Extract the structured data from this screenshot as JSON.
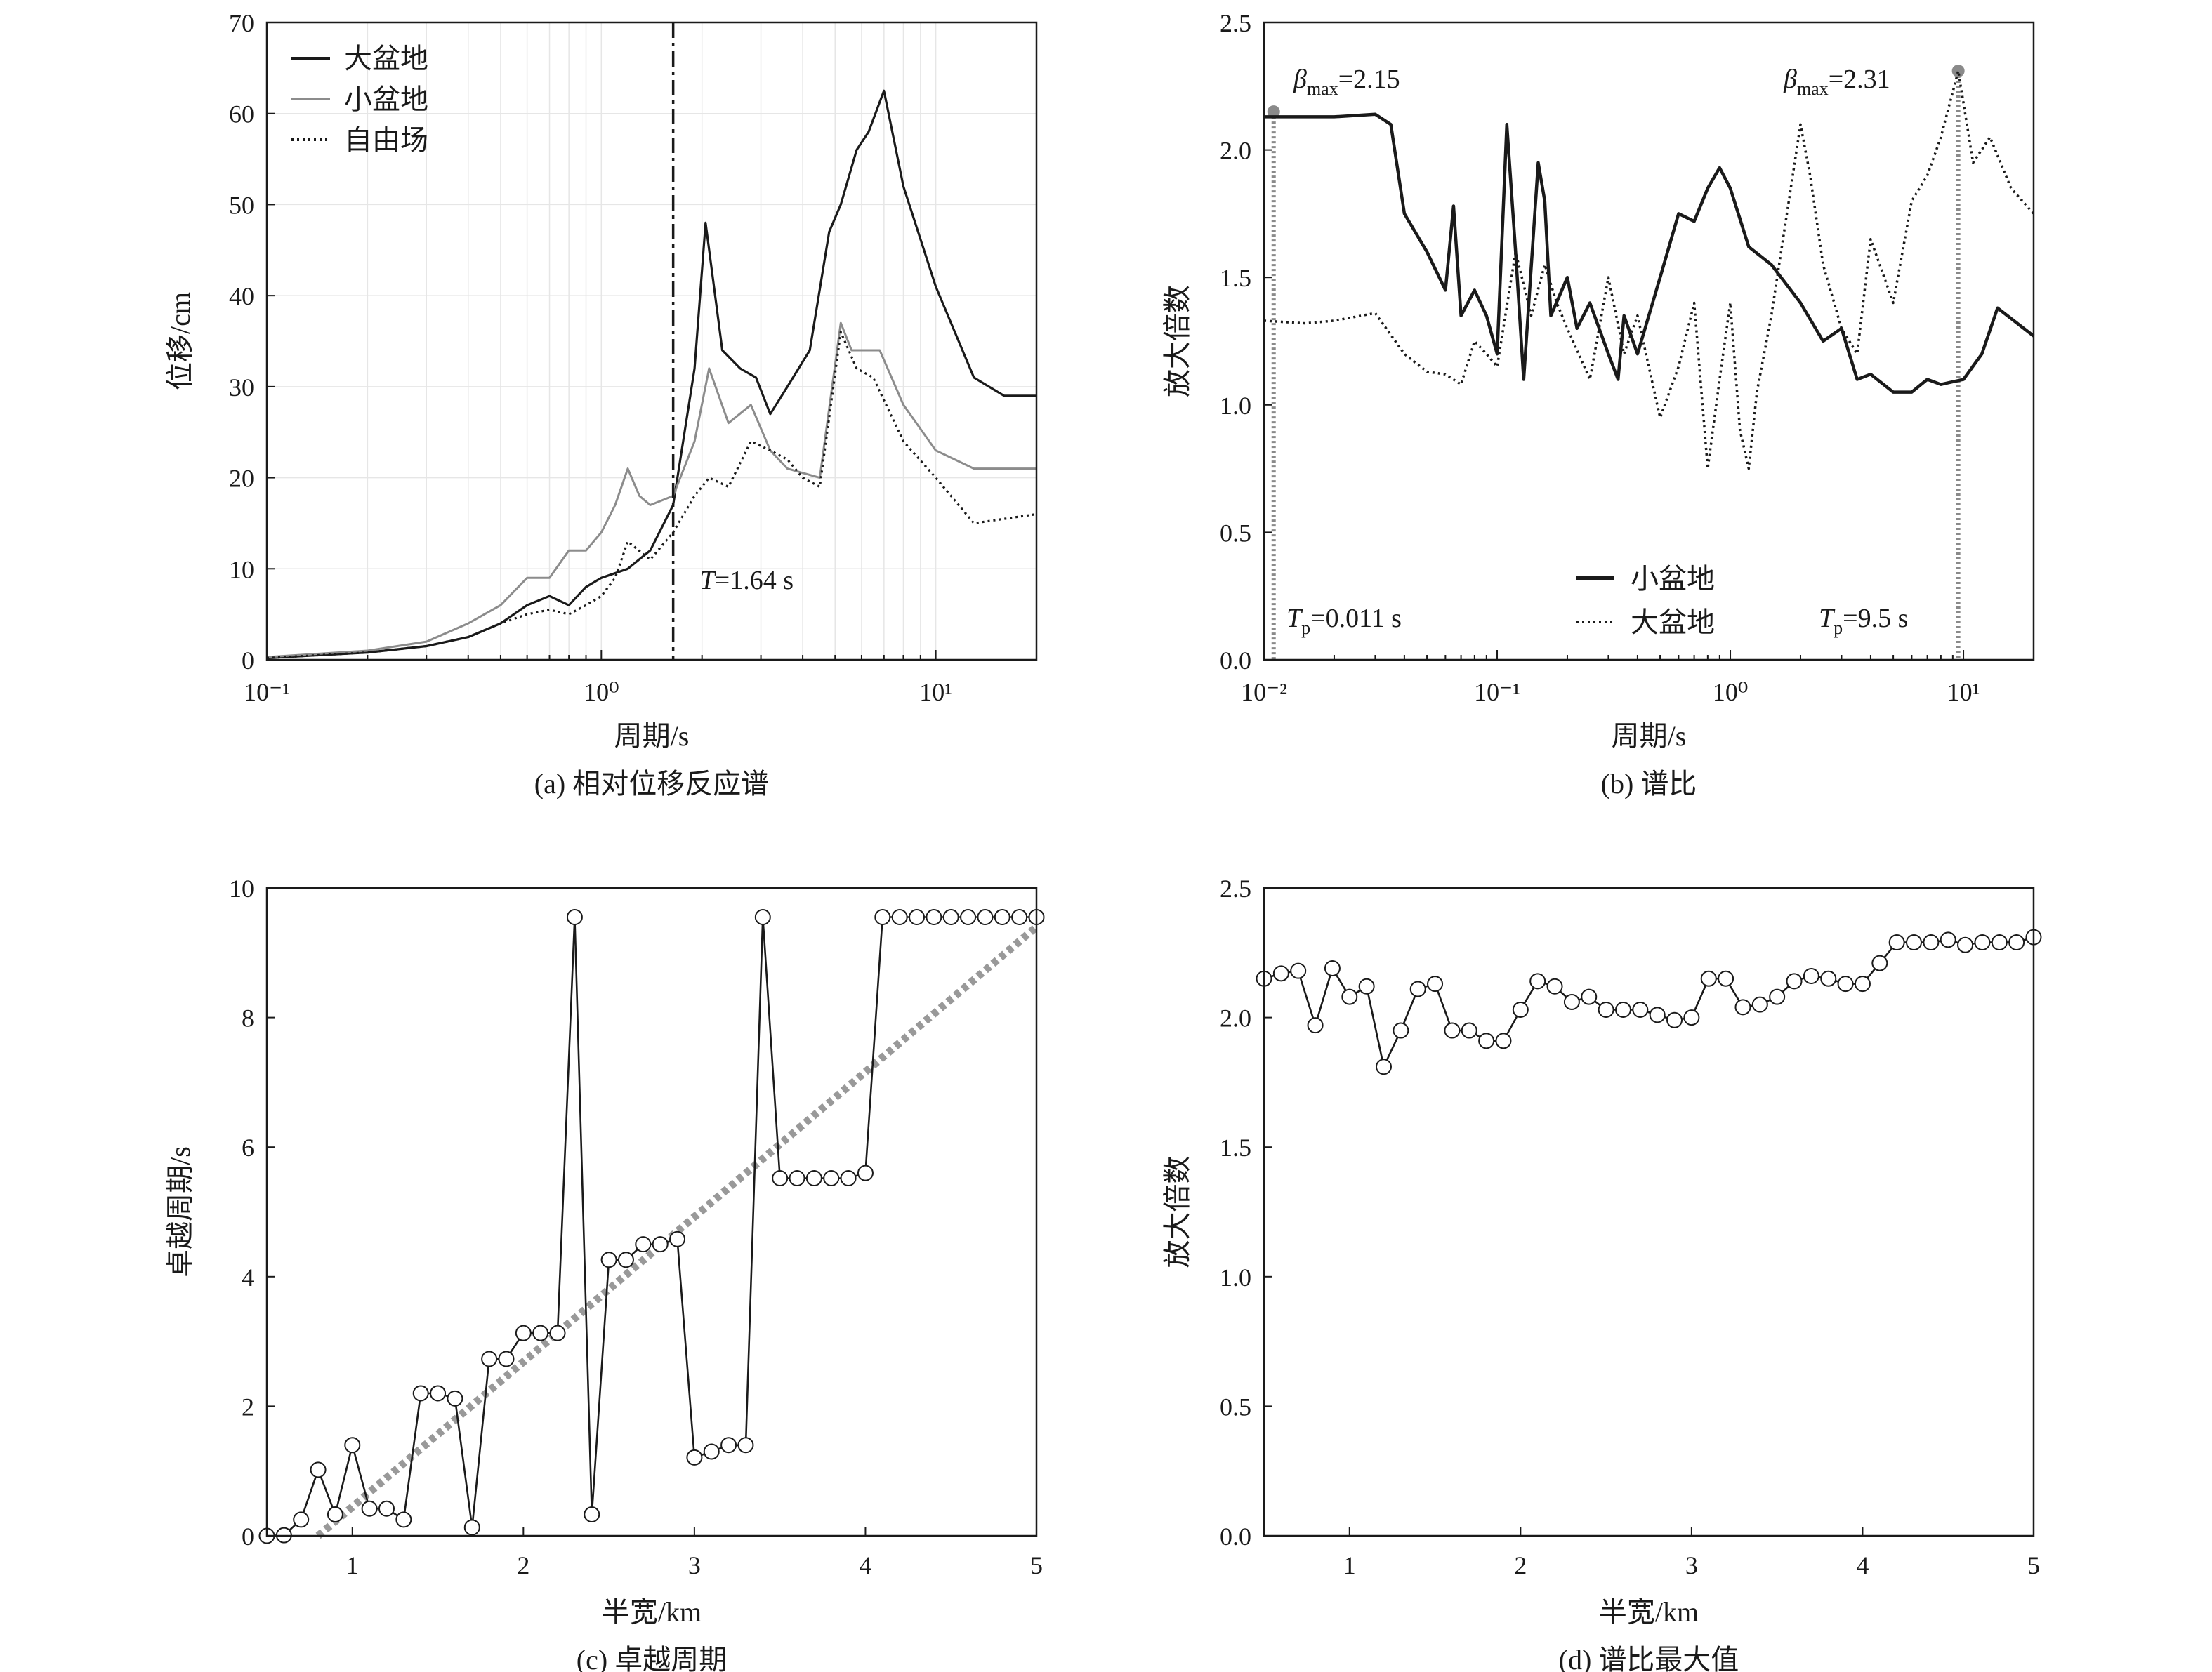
{
  "chart_data": [
    {
      "type": "line",
      "caption": "(a) 相对位移反应谱",
      "xlabel": "周期/s",
      "ylabel": "位移/cm",
      "xscale": "log",
      "xlim": [
        0.1,
        20
      ],
      "ylim": [
        0,
        70
      ],
      "yticks": [
        "0",
        "10",
        "20",
        "30",
        "40",
        "50",
        "60",
        "70"
      ],
      "xticks": [
        "10⁻¹",
        "10⁰",
        "10¹"
      ],
      "grid": true,
      "legend_position": "top-left",
      "annotation": "T=1.64 s",
      "vline_x": 1.64,
      "series": [
        {
          "name": "大盆地",
          "color": "#1a1a1a",
          "dash": "solid",
          "x": [
            0.1,
            0.2,
            0.3,
            0.4,
            0.5,
            0.6,
            0.7,
            0.8,
            0.9,
            1.0,
            1.2,
            1.4,
            1.64,
            1.9,
            2.05,
            2.3,
            2.6,
            2.9,
            3.2,
            3.6,
            4.2,
            4.8,
            5.2,
            5.8,
            6.3,
            6.6,
            7.0,
            8.0,
            10.0,
            13.0,
            16.0,
            20.0
          ],
          "y": [
            0.2,
            0.8,
            1.5,
            2.5,
            4,
            6,
            7,
            6,
            8,
            9,
            10,
            12,
            17,
            32,
            48,
            34,
            32,
            31,
            27,
            30,
            34,
            47,
            50,
            56,
            58,
            60,
            62.5,
            52,
            41,
            31,
            29,
            29
          ]
        },
        {
          "name": "小盆地",
          "color": "#8c8c8c",
          "dash": "solid",
          "x": [
            0.1,
            0.2,
            0.3,
            0.4,
            0.5,
            0.6,
            0.7,
            0.8,
            0.9,
            1.0,
            1.1,
            1.2,
            1.3,
            1.4,
            1.64,
            1.9,
            2.1,
            2.4,
            2.8,
            3.2,
            3.6,
            4.5,
            5.2,
            5.6,
            6.0,
            6.8,
            8.0,
            10.0,
            13.0,
            20.0
          ],
          "y": [
            0.3,
            1,
            2,
            4,
            6,
            9,
            9,
            12,
            12,
            14,
            17,
            21,
            18,
            17,
            18,
            24,
            32,
            26,
            28,
            23,
            21,
            20,
            37,
            34,
            34,
            34,
            28,
            23,
            21,
            21
          ]
        },
        {
          "name": "自由场",
          "color": "#1a1a1a",
          "dash": "dotted",
          "x": [
            0.1,
            0.2,
            0.3,
            0.4,
            0.5,
            0.6,
            0.7,
            0.8,
            0.9,
            1.0,
            1.1,
            1.2,
            1.4,
            1.64,
            1.9,
            2.1,
            2.4,
            2.8,
            3.2,
            3.6,
            4.0,
            4.5,
            5.2,
            5.8,
            6.5,
            8.0,
            10.0,
            13.0,
            20.0
          ],
          "y": [
            0.2,
            0.8,
            1.5,
            2.5,
            4,
            5,
            5.5,
            5,
            6,
            7,
            9,
            13,
            11,
            14,
            18,
            20,
            19,
            24,
            23,
            22,
            20,
            19,
            36,
            32,
            31,
            24,
            20,
            15,
            16
          ]
        }
      ]
    },
    {
      "type": "line",
      "caption": "(b) 谱比",
      "xlabel": "周期/s",
      "ylabel": "放大倍数",
      "xscale": "log",
      "xlim": [
        0.01,
        20
      ],
      "ylim": [
        0,
        2.5
      ],
      "yticks": [
        "0.0",
        "0.5",
        "1.0",
        "1.5",
        "2.0",
        "2.5"
      ],
      "xticks": [
        "10⁻²",
        "10⁻¹",
        "10⁰",
        "10¹"
      ],
      "grid": false,
      "legend_position": "bottom-center",
      "annotations": [
        {
          "beta": "β",
          "sub": "max",
          "value": "=2.15",
          "x": 0.011,
          "y": 2.15
        },
        {
          "beta": "β",
          "sub": "max",
          "value": "=2.31",
          "x": 9.5,
          "y": 2.31
        },
        {
          "T": "T",
          "sub": "p",
          "value": "=0.011 s",
          "x": 0.011
        },
        {
          "T": "T",
          "sub": "p",
          "value": "=9.5 s",
          "x": 9.5
        }
      ],
      "series": [
        {
          "name": "小盆地",
          "color": "#1a1a1a",
          "dash": "solid",
          "x": [
            0.01,
            0.015,
            0.02,
            0.03,
            0.035,
            0.04,
            0.05,
            0.06,
            0.065,
            0.07,
            0.08,
            0.09,
            0.1,
            0.11,
            0.12,
            0.13,
            0.15,
            0.16,
            0.17,
            0.2,
            0.22,
            0.25,
            0.3,
            0.33,
            0.35,
            0.4,
            0.5,
            0.6,
            0.7,
            0.8,
            0.9,
            1.0,
            1.2,
            1.5,
            2.0,
            2.5,
            3.0,
            3.5,
            4.0,
            5.0,
            6.0,
            7.0,
            8.0,
            10.0,
            12.0,
            14.0,
            20.0
          ],
          "y": [
            2.13,
            2.13,
            2.13,
            2.14,
            2.1,
            1.75,
            1.6,
            1.45,
            1.78,
            1.35,
            1.45,
            1.35,
            1.2,
            2.1,
            1.6,
            1.1,
            1.95,
            1.8,
            1.35,
            1.5,
            1.3,
            1.4,
            1.2,
            1.1,
            1.35,
            1.2,
            1.5,
            1.75,
            1.72,
            1.85,
            1.93,
            1.85,
            1.62,
            1.55,
            1.4,
            1.25,
            1.3,
            1.1,
            1.12,
            1.05,
            1.05,
            1.1,
            1.08,
            1.1,
            1.2,
            1.38,
            1.27
          ]
        },
        {
          "name": "大盆地",
          "color": "#1a1a1a",
          "dash": "dotted",
          "x": [
            0.01,
            0.015,
            0.02,
            0.03,
            0.04,
            0.05,
            0.06,
            0.07,
            0.08,
            0.09,
            0.1,
            0.12,
            0.14,
            0.16,
            0.18,
            0.2,
            0.25,
            0.3,
            0.35,
            0.4,
            0.5,
            0.6,
            0.7,
            0.8,
            0.9,
            1.0,
            1.1,
            1.2,
            1.3,
            1.5,
            2.0,
            2.2,
            2.5,
            3.0,
            3.5,
            4.0,
            5.0,
            6.0,
            7.0,
            8.0,
            9.5,
            11.0,
            13.0,
            16.0,
            20.0
          ],
          "y": [
            1.33,
            1.32,
            1.33,
            1.36,
            1.2,
            1.13,
            1.12,
            1.08,
            1.25,
            1.2,
            1.15,
            1.6,
            1.35,
            1.55,
            1.4,
            1.3,
            1.1,
            1.5,
            1.2,
            1.35,
            0.95,
            1.15,
            1.4,
            0.75,
            1.1,
            1.4,
            0.9,
            0.75,
            1.05,
            1.35,
            2.1,
            1.9,
            1.55,
            1.3,
            1.2,
            1.65,
            1.4,
            1.8,
            1.9,
            2.05,
            2.31,
            1.95,
            2.05,
            1.85,
            1.75
          ]
        }
      ]
    },
    {
      "type": "line",
      "caption": "(c) 卓越周期",
      "xlabel": "半宽/km",
      "ylabel": "卓越周期/s",
      "xlim": [
        0.5,
        5
      ],
      "ylim": [
        0,
        10
      ],
      "yticks": [
        "0",
        "2",
        "4",
        "6",
        "8",
        "10"
      ],
      "xticks": [
        "1",
        "2",
        "3",
        "4",
        "5"
      ],
      "grid": false,
      "trendline": {
        "color": "#999999",
        "x": [
          0.8,
          5.0
        ],
        "y": [
          0.0,
          9.4
        ]
      },
      "series": [
        {
          "color": "#1a1a1a",
          "marker": "open-circle",
          "x": [
            0.5,
            0.6,
            0.7,
            0.8,
            0.9,
            1.0,
            1.1,
            1.2,
            1.3,
            1.4,
            1.5,
            1.6,
            1.7,
            1.8,
            1.9,
            2.0,
            2.1,
            2.2,
            2.3,
            2.4,
            2.5,
            2.6,
            2.7,
            2.8,
            2.9,
            3.0,
            3.1,
            3.2,
            3.3,
            3.4,
            3.5,
            3.6,
            3.7,
            3.8,
            3.9,
            4.0,
            4.1,
            4.2,
            4.3,
            4.4,
            4.5,
            4.6,
            4.7,
            4.8,
            4.9,
            5.0
          ],
          "y": [
            0.0,
            0.01,
            0.25,
            1.02,
            0.33,
            1.4,
            0.42,
            0.42,
            0.25,
            2.2,
            2.2,
            2.12,
            0.13,
            2.73,
            2.73,
            3.13,
            3.13,
            3.13,
            9.55,
            0.33,
            4.26,
            4.26,
            4.5,
            4.5,
            4.58,
            1.21,
            1.3,
            1.4,
            1.4,
            9.55,
            5.52,
            5.52,
            5.52,
            5.52,
            5.52,
            5.6,
            9.55,
            9.55,
            9.55,
            9.55,
            9.55,
            9.55,
            9.55,
            9.55,
            9.55,
            9.55
          ]
        }
      ]
    },
    {
      "type": "line",
      "caption": "(d) 谱比最大值",
      "xlabel": "半宽/km",
      "ylabel": "放大倍数",
      "xlim": [
        0.5,
        5
      ],
      "ylim": [
        0,
        2.5
      ],
      "yticks": [
        "0.0",
        "0.5",
        "1.0",
        "1.5",
        "2.0",
        "2.5"
      ],
      "xticks": [
        "1",
        "2",
        "3",
        "4",
        "5"
      ],
      "grid": false,
      "series": [
        {
          "color": "#1a1a1a",
          "marker": "open-circle",
          "x": [
            0.5,
            0.6,
            0.7,
            0.8,
            0.9,
            1.0,
            1.1,
            1.2,
            1.3,
            1.4,
            1.5,
            1.6,
            1.7,
            1.8,
            1.9,
            2.0,
            2.1,
            2.2,
            2.3,
            2.4,
            2.5,
            2.6,
            2.7,
            2.8,
            2.9,
            3.0,
            3.1,
            3.2,
            3.3,
            3.4,
            3.5,
            3.6,
            3.7,
            3.8,
            3.9,
            4.0,
            4.1,
            4.2,
            4.3,
            4.4,
            4.5,
            4.6,
            4.7,
            4.8,
            4.9,
            5.0
          ],
          "y": [
            2.15,
            2.17,
            2.18,
            1.97,
            2.19,
            2.08,
            2.12,
            1.81,
            1.95,
            2.11,
            2.13,
            1.95,
            1.95,
            1.91,
            1.91,
            2.03,
            2.14,
            2.12,
            2.06,
            2.08,
            2.03,
            2.03,
            2.03,
            2.01,
            1.99,
            2.0,
            2.15,
            2.15,
            2.04,
            2.05,
            2.08,
            2.14,
            2.16,
            2.15,
            2.13,
            2.13,
            2.21,
            2.29,
            2.29,
            2.29,
            2.3,
            2.28,
            2.29,
            2.29,
            2.29,
            2.31
          ]
        }
      ]
    }
  ]
}
